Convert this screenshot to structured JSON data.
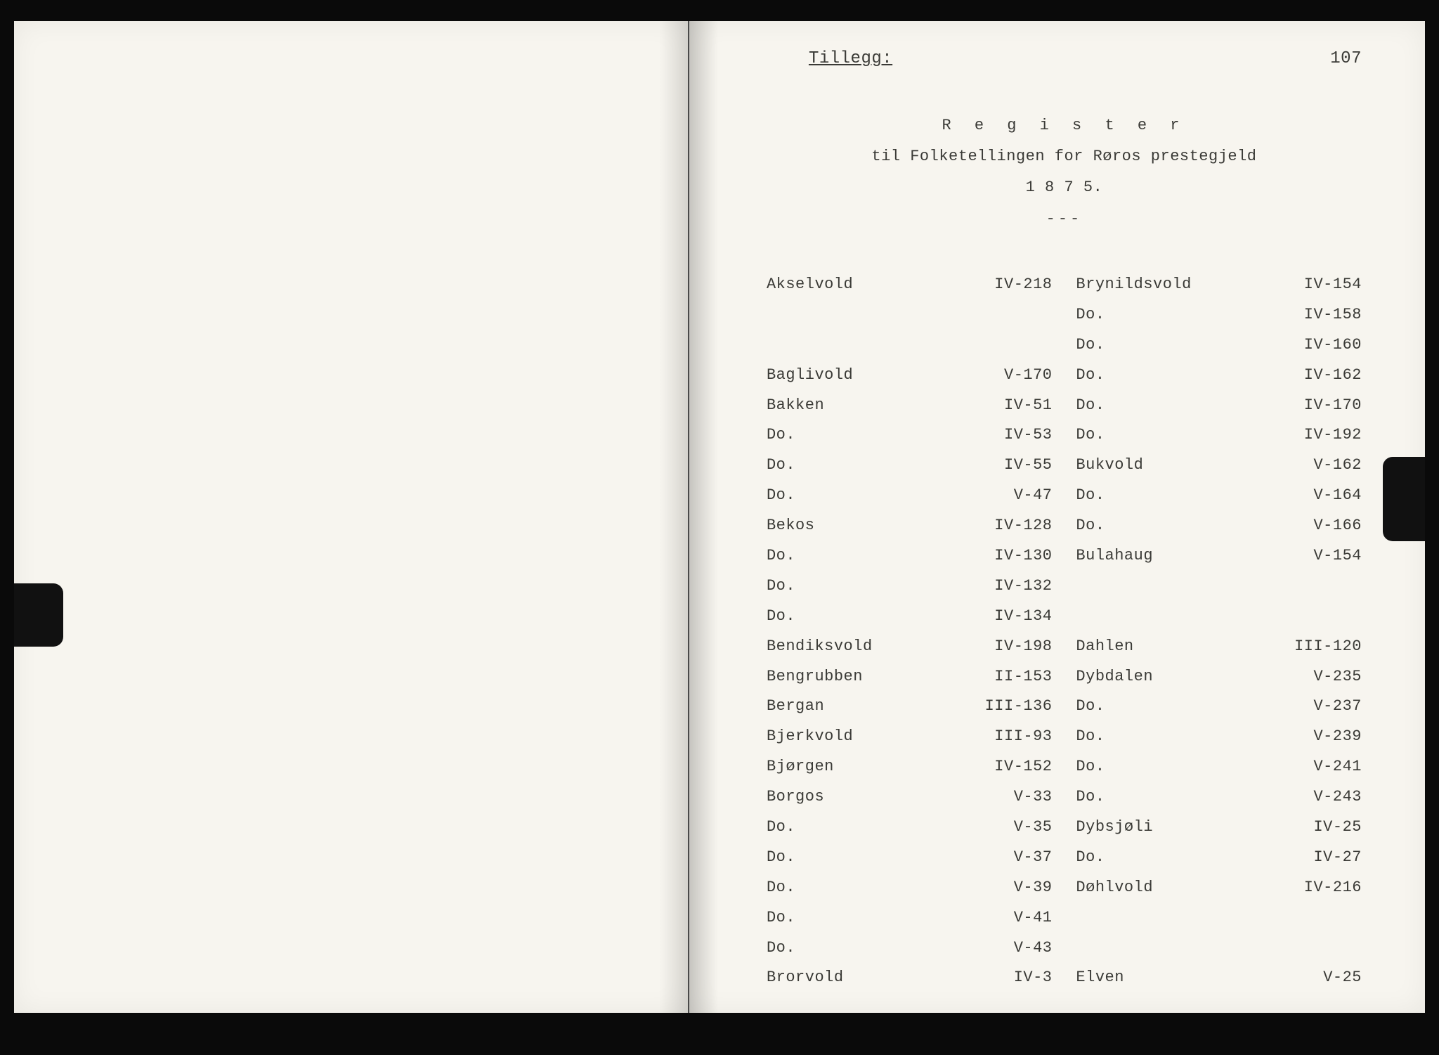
{
  "colors": {
    "paper": "#f7f5ef",
    "ink": "#3a3a36",
    "frame": "#0a0a0a"
  },
  "typography": {
    "family": "Courier New",
    "body_size_pt": 17,
    "header_size_pt": 18
  },
  "page": {
    "appendix_label": "Tillegg:",
    "page_number": "107",
    "header_line1": "R e g i s t e r",
    "header_line2": "til Folketellingen for Røros prestegjeld",
    "header_year": "1 8 7 5.",
    "divider": "---"
  },
  "register": {
    "left": [
      {
        "name": "Akselvold",
        "ref": "IV-218"
      },
      {
        "name": "",
        "ref": ""
      },
      {
        "name": "",
        "ref": ""
      },
      {
        "name": "Baglivold",
        "ref": "V-170"
      },
      {
        "name": "Bakken",
        "ref": "IV-51"
      },
      {
        "name": "Do.",
        "ref": "IV-53"
      },
      {
        "name": "Do.",
        "ref": "IV-55"
      },
      {
        "name": "Do.",
        "ref": "V-47"
      },
      {
        "name": "Bekos",
        "ref": "IV-128"
      },
      {
        "name": "Do.",
        "ref": "IV-130"
      },
      {
        "name": "Do.",
        "ref": "IV-132"
      },
      {
        "name": "Do.",
        "ref": "IV-134"
      },
      {
        "name": "Bendiksvold",
        "ref": "IV-198"
      },
      {
        "name": "Bengrubben",
        "ref": "II-153"
      },
      {
        "name": "Bergan",
        "ref": "III-136"
      },
      {
        "name": "Bjerkvold",
        "ref": "III-93"
      },
      {
        "name": "Bjørgen",
        "ref": "IV-152"
      },
      {
        "name": "Borgos",
        "ref": "V-33"
      },
      {
        "name": "Do.",
        "ref": "V-35"
      },
      {
        "name": "Do.",
        "ref": "V-37"
      },
      {
        "name": "Do.",
        "ref": "V-39"
      },
      {
        "name": "Do.",
        "ref": "V-41"
      },
      {
        "name": "Do.",
        "ref": "V-43"
      },
      {
        "name": "Brorvold",
        "ref": "IV-3"
      }
    ],
    "right": [
      {
        "name": "Brynildsvold",
        "ref": "IV-154"
      },
      {
        "name": "Do.",
        "ref": "IV-158"
      },
      {
        "name": "Do.",
        "ref": "IV-160"
      },
      {
        "name": "Do.",
        "ref": "IV-162"
      },
      {
        "name": "Do.",
        "ref": "IV-170"
      },
      {
        "name": "Do.",
        "ref": "IV-192"
      },
      {
        "name": "Bukvold",
        "ref": "V-162"
      },
      {
        "name": "Do.",
        "ref": "V-164"
      },
      {
        "name": "Do.",
        "ref": "V-166"
      },
      {
        "name": "Bulahaug",
        "ref": "V-154"
      },
      {
        "name": "",
        "ref": ""
      },
      {
        "name": "",
        "ref": ""
      },
      {
        "name": "Dahlen",
        "ref": "III-120"
      },
      {
        "name": "Dybdalen",
        "ref": "V-235"
      },
      {
        "name": "Do.",
        "ref": "V-237"
      },
      {
        "name": "Do.",
        "ref": "V-239"
      },
      {
        "name": "Do.",
        "ref": "V-241"
      },
      {
        "name": "Do.",
        "ref": "V-243"
      },
      {
        "name": "Dybsjøli",
        "ref": "IV-25"
      },
      {
        "name": "Do.",
        "ref": "IV-27"
      },
      {
        "name": "Døhlvold",
        "ref": "IV-216"
      },
      {
        "name": "",
        "ref": ""
      },
      {
        "name": "",
        "ref": ""
      },
      {
        "name": "Elven",
        "ref": "V-25"
      }
    ]
  }
}
